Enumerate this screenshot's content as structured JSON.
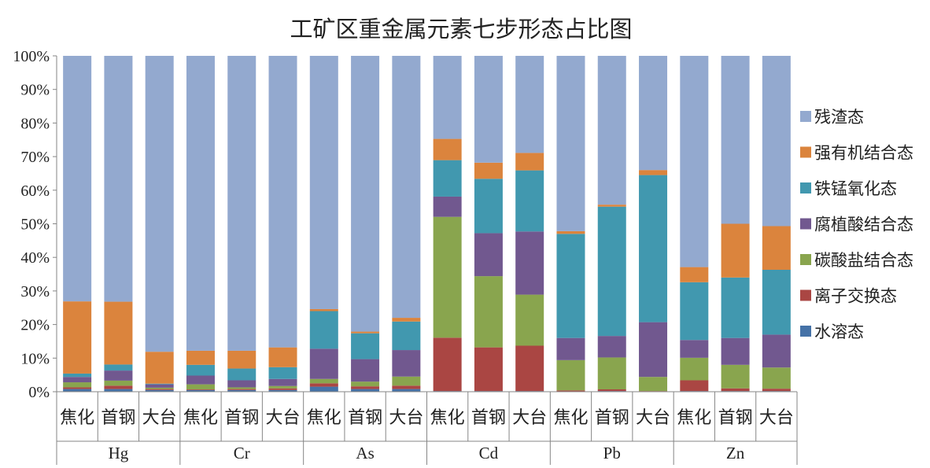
{
  "chart_data": {
    "type": "bar",
    "stacked": "percent",
    "title": "工矿区重金属元素七步形态占比图",
    "groups": [
      {
        "name": "Hg",
        "categories": [
          "焦化",
          "首钢",
          "大台"
        ]
      },
      {
        "name": "Cr",
        "categories": [
          "焦化",
          "首钢",
          "大台"
        ]
      },
      {
        "name": "As",
        "categories": [
          "焦化",
          "首钢",
          "大台"
        ]
      },
      {
        "name": "Cd",
        "categories": [
          "焦化",
          "首钢",
          "大台"
        ]
      },
      {
        "name": "Pb",
        "categories": [
          "焦化",
          "首钢",
          "大台"
        ]
      },
      {
        "name": "Zn",
        "categories": [
          "焦化",
          "首钢",
          "大台"
        ]
      }
    ],
    "yticks": [
      "0%",
      "10%",
      "20%",
      "30%",
      "40%",
      "50%",
      "60%",
      "70%",
      "80%",
      "90%",
      "100%"
    ],
    "ylim": [
      0,
      100
    ],
    "grid": false,
    "legend_position": "right",
    "series": [
      {
        "name": "水溶态",
        "color": "#4572a7",
        "values": [
          0.8,
          0.8,
          0.5,
          0.5,
          0.5,
          0.5,
          1.5,
          0.8,
          0.8,
          0.2,
          0.2,
          0.2,
          0.1,
          0.2,
          0.1,
          0.2,
          0.2,
          0.2
        ]
      },
      {
        "name": "离子交换态",
        "color": "#aa4643",
        "values": [
          0.5,
          1.0,
          0.3,
          0.2,
          0.3,
          0.5,
          1.0,
          0.8,
          1.0,
          15.8,
          13.0,
          13.5,
          0.3,
          0.5,
          0.1,
          3.2,
          0.8,
          0.7
        ]
      },
      {
        "name": "碳酸盐结合态",
        "color": "#89a54e",
        "values": [
          1.5,
          1.5,
          0.4,
          1.5,
          0.5,
          0.7,
          1.3,
          1.4,
          2.7,
          35.8,
          21.2,
          15.2,
          9.0,
          9.5,
          4.2,
          6.7,
          7.0,
          6.3
        ]
      },
      {
        "name": "腐植酸结合态",
        "color": "#71588f",
        "values": [
          1.6,
          3.0,
          1.0,
          2.6,
          2.1,
          2.1,
          9.0,
          6.7,
          7.9,
          6.0,
          12.8,
          18.8,
          6.6,
          6.4,
          16.3,
          5.3,
          8.0,
          9.8
        ]
      },
      {
        "name": "铁锰氧化态",
        "color": "#4198af",
        "values": [
          1.0,
          1.8,
          0.2,
          3.2,
          3.5,
          3.5,
          11.2,
          7.7,
          8.5,
          10.8,
          16.2,
          18.2,
          31.0,
          38.5,
          43.8,
          17.2,
          18.0,
          19.3
        ]
      },
      {
        "name": "强有机结合态",
        "color": "#db843d",
        "values": [
          21.5,
          18.7,
          9.5,
          4.2,
          5.3,
          5.9,
          0.6,
          0.5,
          1.1,
          6.3,
          4.8,
          5.2,
          0.8,
          0.6,
          1.5,
          4.5,
          16.0,
          13.0
        ]
      },
      {
        "name": "残渣态",
        "color": "#93a9cf",
        "values": [
          73.1,
          73.2,
          88.1,
          87.8,
          87.8,
          86.8,
          75.4,
          82.1,
          78.0,
          24.6,
          31.8,
          28.9,
          52.2,
          44.3,
          34.0,
          62.9,
          50.0,
          50.7
        ]
      }
    ]
  }
}
